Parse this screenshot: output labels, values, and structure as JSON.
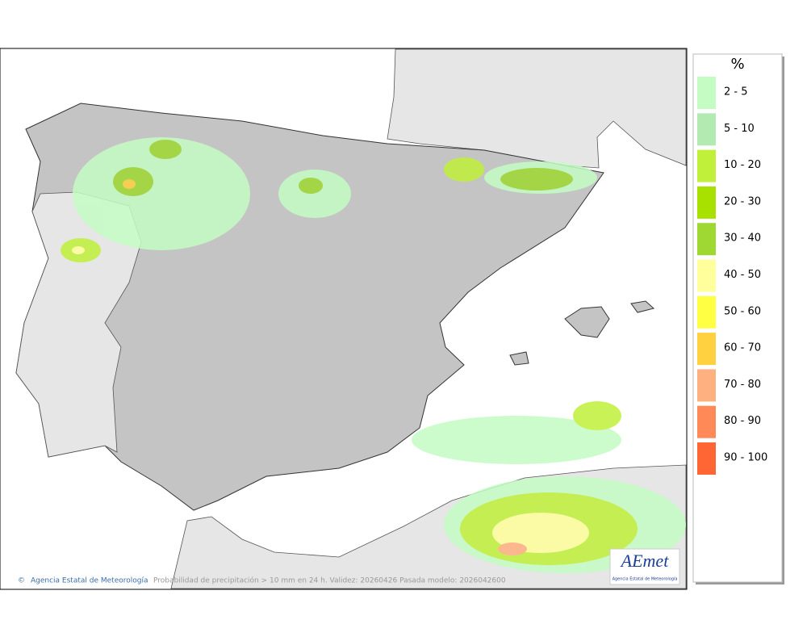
{
  "map": {
    "credit": "Agencia Estatal de Meteorología",
    "caption": "Probabilidad de precipitación > 10 mm en 24 h. Validez: 20260426 Pasada modelo: 2026042600"
  },
  "logo": {
    "text": "AEmet",
    "subtitle": "Agencia Estatal de Meteorología"
  },
  "legend": {
    "title": "%",
    "items": [
      {
        "label": "2 - 5",
        "color": "#c4fcc4"
      },
      {
        "label": "5 - 10",
        "color": "#b2eab2"
      },
      {
        "label": "10 - 20",
        "color": "#c0f03a"
      },
      {
        "label": "20 - 30",
        "color": "#a8e000"
      },
      {
        "label": "30 - 40",
        "color": "#9fd832"
      },
      {
        "label": "40 - 50",
        "color": "#ffff9c"
      },
      {
        "label": "50 - 60",
        "color": "#ffff44"
      },
      {
        "label": "60 - 70",
        "color": "#ffd040"
      },
      {
        "label": "70 - 80",
        "color": "#ffb080"
      },
      {
        "label": "80 - 90",
        "color": "#ff8a58"
      },
      {
        "label": "90 - 100",
        "color": "#ff6633"
      }
    ]
  }
}
